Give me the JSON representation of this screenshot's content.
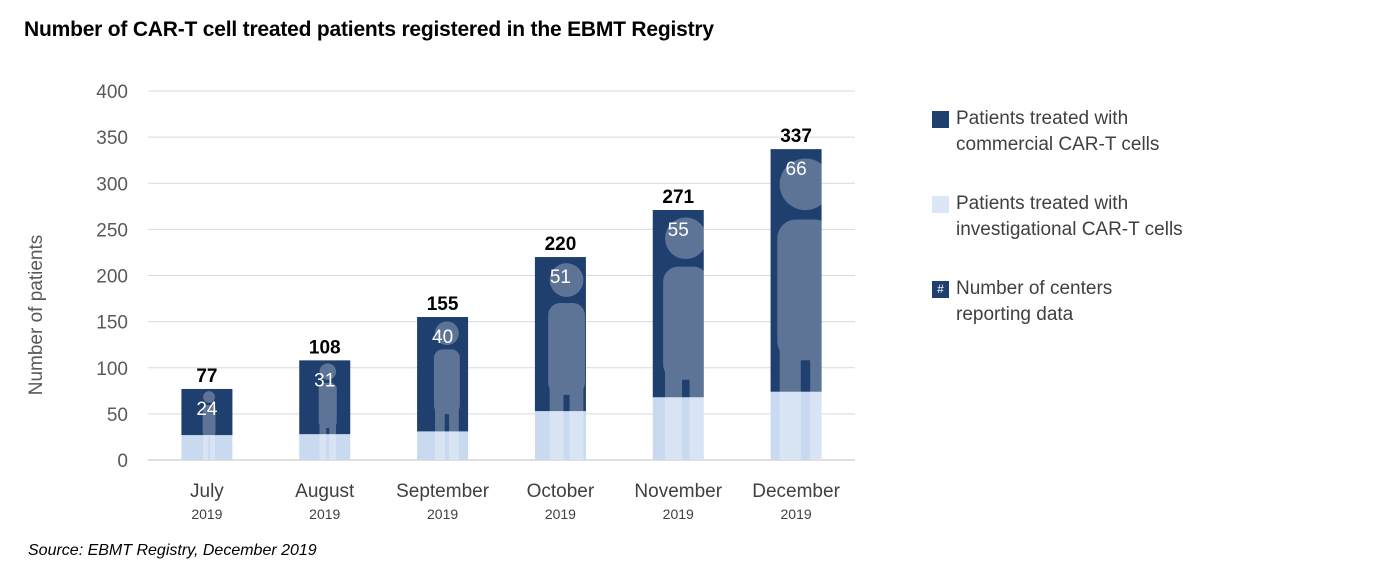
{
  "chart_data": {
    "type": "bar",
    "title": "Number of CAR-T cell treated patients registered in the EBMT Registry",
    "ylabel": "Number of patients",
    "ylim": [
      0,
      400
    ],
    "yticks": [
      "0",
      "50",
      "100",
      "150",
      "200",
      "250",
      "300",
      "350",
      "400"
    ],
    "stacked": true,
    "grid": true,
    "legend_position": "right",
    "categories": [
      "July",
      "August",
      "September",
      "October",
      "November",
      "December"
    ],
    "category_years": [
      "2019",
      "2019",
      "2019",
      "2019",
      "2019",
      "2019"
    ],
    "totals": [
      77,
      108,
      155,
      220,
      271,
      337
    ],
    "series": [
      {
        "name": "Patients treated with investigational CAR-T cells",
        "color": "#c9daf0",
        "values": [
          27,
          28,
          31,
          53,
          68,
          74
        ]
      },
      {
        "name": "Patients treated with commercial CAR-T cells",
        "color": "#1f3f6e",
        "values": [
          50,
          80,
          124,
          167,
          203,
          263
        ]
      }
    ],
    "centers_reporting": [
      24,
      31,
      40,
      51,
      55,
      66
    ],
    "source": "Source: EBMT Registry, December 2019"
  },
  "legend": {
    "items": [
      {
        "key": "commercial",
        "lines": [
          "Patients treated with",
          "commercial CAR-T cells"
        ],
        "color": "#1f3f6e"
      },
      {
        "key": "investigational",
        "lines": [
          "Patients treated with",
          "investigational CAR-T cells"
        ],
        "color": "#dce7f5"
      },
      {
        "key": "centers",
        "lines": [
          "Number of centers",
          "reporting data"
        ],
        "color": "#1f3f6e",
        "symbol": "#"
      }
    ]
  }
}
